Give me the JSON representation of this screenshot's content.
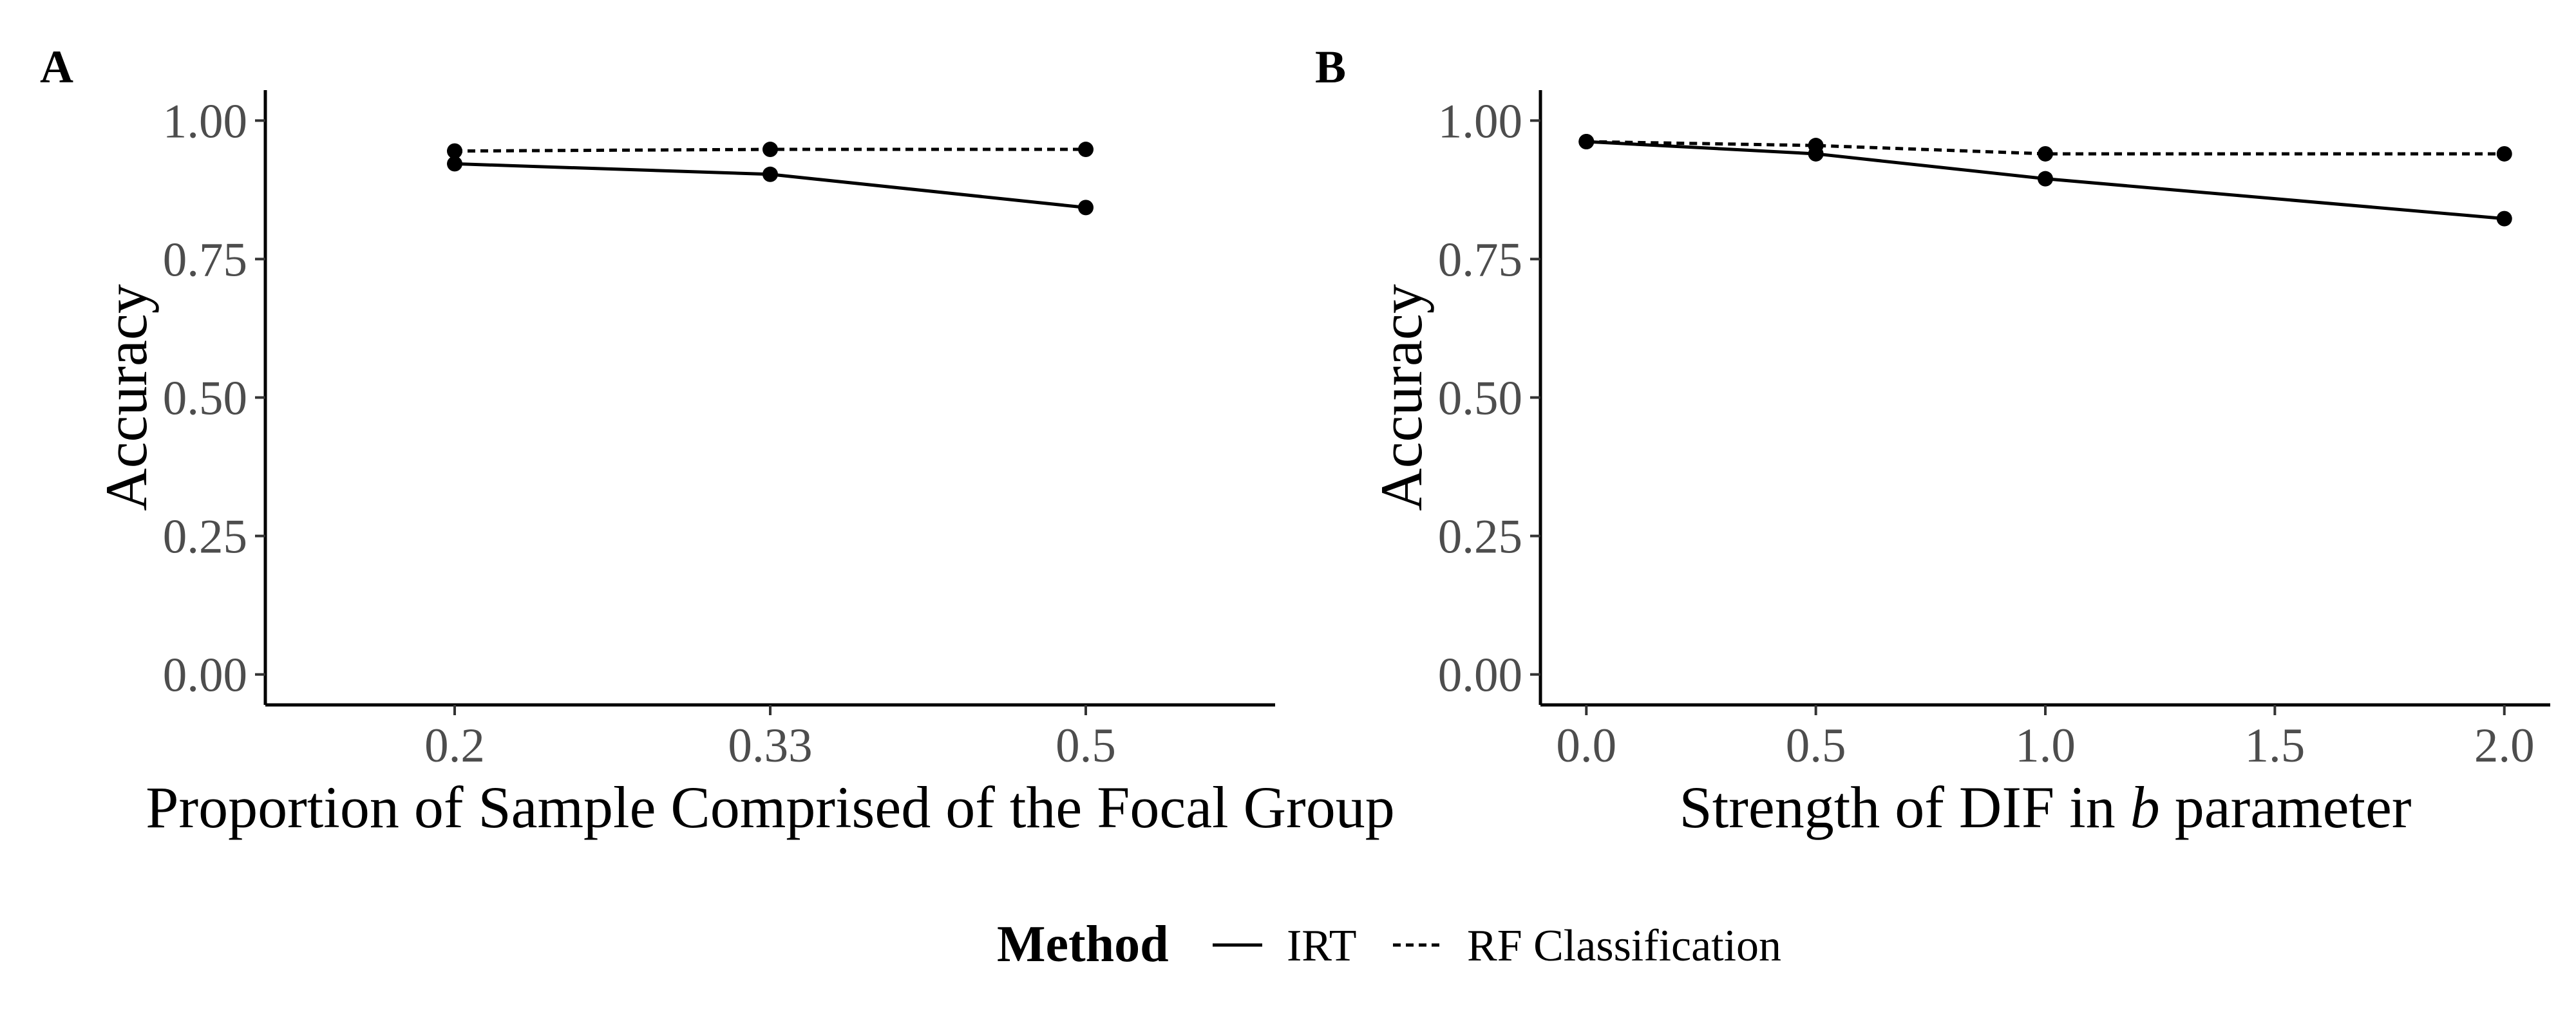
{
  "chart_data": [
    {
      "type": "line",
      "panel": "A",
      "xlabel": "Proportion of Sample Comprised of the Focal Group",
      "ylabel": "Accuracy",
      "x_scale": "categorical",
      "categories": [
        "0.2",
        "0.33",
        "0.5"
      ],
      "ylim": [
        -0.055,
        1.055
      ],
      "yticks": [
        "0.00",
        "0.25",
        "0.50",
        "0.75",
        "1.00"
      ],
      "series": [
        {
          "name": "IRT",
          "linestyle": "solid",
          "values": [
            0.922,
            0.903,
            0.843
          ]
        },
        {
          "name": "RF Classification",
          "linestyle": "dashed",
          "values": [
            0.945,
            0.948,
            0.948
          ]
        }
      ]
    },
    {
      "type": "line",
      "panel": "B",
      "xlabel_pre": "Strength of DIF in",
      "xlabel_italic": "b",
      "xlabel_post": "parameter",
      "ylabel": "Accuracy",
      "x_scale": "continuous",
      "xlim": [
        -0.1,
        2.1
      ],
      "xticks": [
        "0.0",
        "0.5",
        "1.0",
        "1.5",
        "2.0"
      ],
      "ylim": [
        -0.055,
        1.055
      ],
      "yticks": [
        "0.00",
        "0.25",
        "0.50",
        "0.75",
        "1.00"
      ],
      "series": [
        {
          "name": "IRT",
          "linestyle": "solid",
          "x": [
            0.0,
            0.5,
            1.0,
            2.0
          ],
          "values": [
            0.962,
            0.94,
            0.895,
            0.823
          ]
        },
        {
          "name": "RF Classification",
          "linestyle": "dashed",
          "x": [
            0.0,
            0.5,
            1.0,
            2.0
          ],
          "values": [
            0.962,
            0.955,
            0.94,
            0.94
          ]
        }
      ]
    }
  ],
  "legend": {
    "title": "Method",
    "items": [
      {
        "label": "IRT",
        "linestyle": "solid"
      },
      {
        "label": "RF Classification",
        "linestyle": "dashed"
      }
    ]
  },
  "colors": {
    "line": "#000000",
    "tick_text": "#4d4d4d"
  }
}
